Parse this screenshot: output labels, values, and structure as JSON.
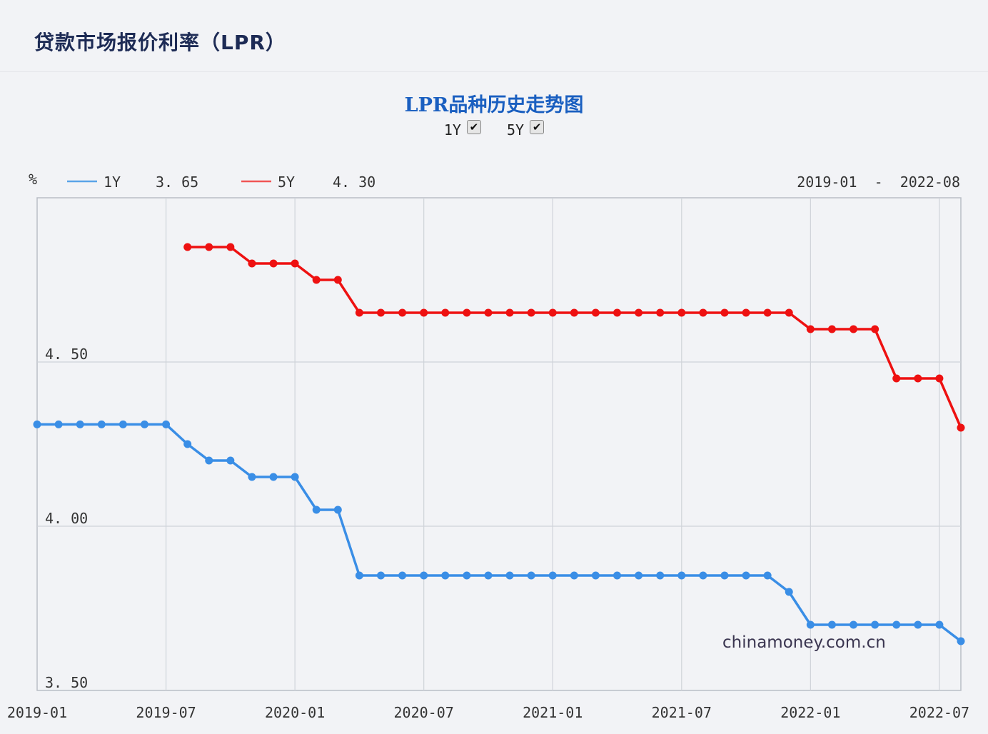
{
  "page": {
    "title": "贷款市场报价利率（LPR）"
  },
  "chart_header": {
    "title": "LPR品种历史走势图",
    "toggles": [
      {
        "label": "1Y",
        "checked": true,
        "check_glyph": "✔"
      },
      {
        "label": "5Y",
        "checked": true,
        "check_glyph": "✔"
      }
    ]
  },
  "legend": {
    "unit": "%",
    "items": [
      {
        "label": "1Y",
        "value": "3.65",
        "display_value": "3. 65",
        "color": "#3a8ee6"
      },
      {
        "label": "5Y",
        "value": "4.30",
        "display_value": "4. 30",
        "color": "#ee1111"
      }
    ],
    "range": "2019-01  -  2022-08"
  },
  "watermark": "chinamoney.com.cn",
  "colors": {
    "one_year": "#3a8ee6",
    "five_year": "#ee1111",
    "grid": "#cfd3d9",
    "plot_bg": "#f2f3f6",
    "title_blue": "#1a5fc0",
    "page_title": "#1d2b55"
  },
  "chart_data": {
    "type": "line",
    "title": "LPR品种历史走势图",
    "xlabel": "",
    "ylabel": "%",
    "ylim": [
      3.5,
      5.0
    ],
    "yticks": [
      3.5,
      4.0,
      4.5
    ],
    "ytick_labels": [
      "3. 50",
      "4. 00",
      "4. 50"
    ],
    "xticks": [
      "2019-01",
      "2019-07",
      "2020-01",
      "2020-07",
      "2021-01",
      "2021-07",
      "2022-01",
      "2022-07"
    ],
    "x_range": [
      "2019-01",
      "2022-08"
    ],
    "grid": true,
    "legend_position": "top-left",
    "x": [
      "2019-01",
      "2019-02",
      "2019-03",
      "2019-04",
      "2019-05",
      "2019-06",
      "2019-07",
      "2019-08",
      "2019-09",
      "2019-10",
      "2019-11",
      "2019-12",
      "2020-01",
      "2020-02",
      "2020-03",
      "2020-04",
      "2020-05",
      "2020-06",
      "2020-07",
      "2020-08",
      "2020-09",
      "2020-10",
      "2020-11",
      "2020-12",
      "2021-01",
      "2021-02",
      "2021-03",
      "2021-04",
      "2021-05",
      "2021-06",
      "2021-07",
      "2021-08",
      "2021-09",
      "2021-10",
      "2021-11",
      "2021-12",
      "2022-01",
      "2022-02",
      "2022-03",
      "2022-04",
      "2022-05",
      "2022-06",
      "2022-07",
      "2022-08"
    ],
    "series": [
      {
        "name": "1Y",
        "color": "#3a8ee6",
        "values": [
          4.31,
          4.31,
          4.31,
          4.31,
          4.31,
          4.31,
          4.31,
          4.25,
          4.2,
          4.2,
          4.15,
          4.15,
          4.15,
          4.05,
          4.05,
          3.85,
          3.85,
          3.85,
          3.85,
          3.85,
          3.85,
          3.85,
          3.85,
          3.85,
          3.85,
          3.85,
          3.85,
          3.85,
          3.85,
          3.85,
          3.85,
          3.85,
          3.85,
          3.85,
          3.85,
          3.8,
          3.7,
          3.7,
          3.7,
          3.7,
          3.7,
          3.7,
          3.7,
          3.65
        ]
      },
      {
        "name": "5Y",
        "color": "#ee1111",
        "values": [
          null,
          null,
          null,
          null,
          null,
          null,
          null,
          4.85,
          4.85,
          4.85,
          4.8,
          4.8,
          4.8,
          4.75,
          4.75,
          4.65,
          4.65,
          4.65,
          4.65,
          4.65,
          4.65,
          4.65,
          4.65,
          4.65,
          4.65,
          4.65,
          4.65,
          4.65,
          4.65,
          4.65,
          4.65,
          4.65,
          4.65,
          4.65,
          4.65,
          4.65,
          4.6,
          4.6,
          4.6,
          4.6,
          4.45,
          4.45,
          4.45,
          4.3
        ]
      }
    ]
  }
}
